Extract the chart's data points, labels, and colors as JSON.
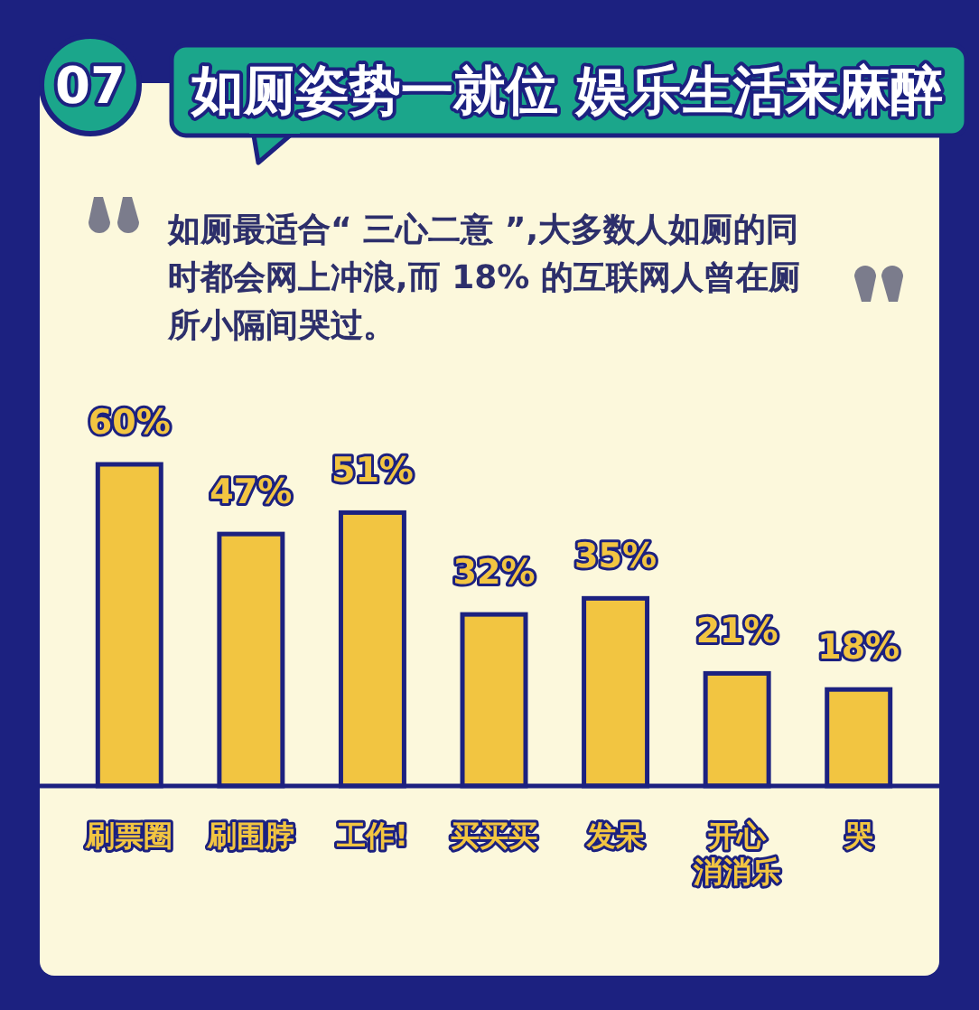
{
  "chart_data": {
    "type": "bar",
    "title": "如厕姿势一就位 娱乐生活来麻醉",
    "subtitle": "如厕最适合“ 三心二意 ”,大多数人如厕的同时都会网上冲浪,而 18% 的互联网人曾在厕所小隔间哭过。",
    "annotations": [
      "07"
    ],
    "categories": [
      "刷票圈",
      "刷围脖",
      "工作!",
      "买买买",
      "发呆",
      "开心消消乐",
      "哭"
    ],
    "values": [
      60,
      47,
      51,
      32,
      35,
      21,
      18
    ],
    "value_labels": [
      "60%",
      "47%",
      "51%",
      "32%",
      "35%",
      "21%",
      "18%"
    ],
    "color": "#f2c541"
  }
}
